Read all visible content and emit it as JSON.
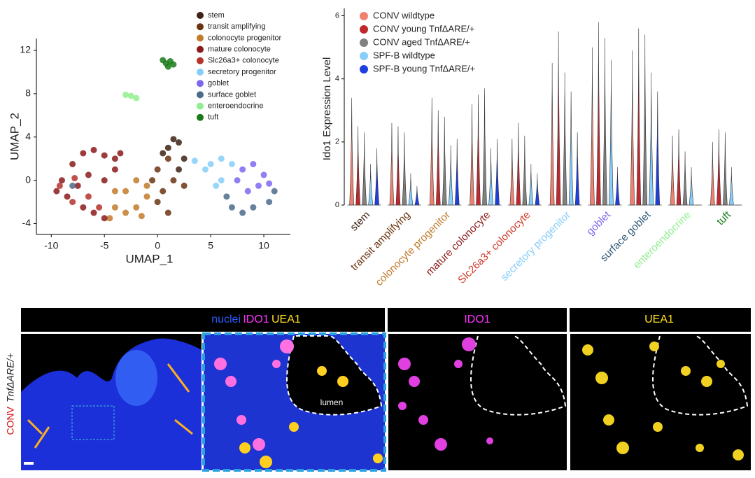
{
  "chart_data": [
    {
      "type": "scatter",
      "xlabel": "UMAP_1",
      "ylabel": "UMAP_2",
      "xlim": [
        -11.4,
        12.5
      ],
      "ylim": [
        -5,
        13.1
      ],
      "xticks": [
        -10,
        -5,
        0,
        5,
        10
      ],
      "yticks": [
        -4,
        0,
        4,
        8,
        12
      ],
      "series": [
        {
          "name": "stem",
          "color": "#3d2314",
          "x": [
            1,
            2,
            2.5,
            2,
            1.5,
            0.5
          ],
          "y": [
            3,
            3.5,
            2,
            1,
            3.8,
            2.5
          ]
        },
        {
          "name": "transit amplifying",
          "color": "#6b3410",
          "x": [
            0,
            1,
            0.5,
            1,
            0,
            1.5,
            2.5,
            -0.5
          ],
          "y": [
            1,
            2,
            -1,
            -3,
            -2,
            0,
            -0.5,
            0
          ]
        },
        {
          "name": "colonocyte progenitor",
          "color": "#c27a2c",
          "x": [
            -4,
            -3,
            -2,
            -1,
            -3,
            -2,
            -1,
            -4,
            -1.5,
            -4.5
          ],
          "y": [
            -2.5,
            -3,
            -2.5,
            -1.5,
            -1,
            0,
            -0.5,
            -1,
            -3.3,
            -3.5
          ]
        },
        {
          "name": "mature colonocyte",
          "color": "#8b1a1a",
          "x": [
            -9,
            -8,
            -7,
            -6,
            -5,
            -4,
            -8.5,
            -7,
            -6,
            -5,
            -6.5,
            -7.5,
            -5,
            -4,
            -9.5,
            -3.5
          ],
          "y": [
            0,
            1.5,
            2.5,
            2.8,
            2.3,
            2,
            -1.5,
            -2.5,
            -3,
            -3.5,
            0.5,
            -0.5,
            0,
            1,
            -1,
            2.5
          ]
        },
        {
          "name": "Slc26a3+ colonocyte",
          "color": "#b5332a",
          "x": [
            -9.2,
            -8,
            -6.5,
            -5.5,
            -7.8
          ],
          "y": [
            -0.5,
            -2,
            -1.5,
            -2.5,
            0.2
          ]
        },
        {
          "name": "secretory progenitor",
          "color": "#87cefa",
          "x": [
            5,
            6,
            4.5,
            6,
            7,
            5.5,
            3.5
          ],
          "y": [
            1.5,
            2,
            1,
            0,
            1.5,
            -0.5,
            1.8
          ]
        },
        {
          "name": "goblet",
          "color": "#7b68ee",
          "x": [
            8,
            9,
            10,
            8.5,
            9.5,
            7.5,
            10.5
          ],
          "y": [
            1,
            1.5,
            0.5,
            -1,
            -0.5,
            0,
            -0.3
          ]
        },
        {
          "name": "surface goblet",
          "color": "#4a6b8a",
          "x": [
            6.5,
            7,
            9,
            10.5,
            11,
            8,
            -8
          ],
          "y": [
            -1.5,
            -2.5,
            -2.5,
            -2,
            -1,
            -3,
            -0.5
          ]
        },
        {
          "name": "enteroendocrine",
          "color": "#90ee90",
          "x": [
            -2.5,
            -2,
            -3
          ],
          "y": [
            7.8,
            7.6,
            7.9
          ]
        },
        {
          "name": "tuft",
          "color": "#1a7a1a",
          "x": [
            0.8,
            1.2,
            1,
            1.5,
            0.5
          ],
          "y": [
            10.8,
            11,
            10.5,
            10.7,
            11.1
          ]
        }
      ]
    },
    {
      "type": "violin",
      "ylabel": "Ido1 Expression Level",
      "categories": [
        "stem",
        "transit amplifying",
        "colonocyte progenitor",
        "mature colonocyte",
        "Slc26a3+ colonocyte",
        "secretory progenitor",
        "goblet",
        "surface goblet",
        "enteroendocrine",
        "tuft"
      ],
      "category_colors": [
        "#3d2314",
        "#6b3410",
        "#c27a2c",
        "#8b1a1a",
        "#d03a2a",
        "#87cefa",
        "#7b68ee",
        "#2f5878",
        "#90ee90",
        "#1a7a1a"
      ],
      "ylim": [
        0,
        6.1
      ],
      "yticks": [
        0,
        2,
        4,
        6
      ],
      "series": [
        {
          "name": "CONV wildtype",
          "color": "#f08070",
          "values": [
            3.4,
            2.6,
            3.4,
            3.2,
            2.1,
            4.5,
            5.0,
            4.9,
            2.2,
            2.0
          ]
        },
        {
          "name": "CONV young TnfΔARE/+",
          "color": "#c0282d",
          "values": [
            2.5,
            2.5,
            3.0,
            3.5,
            2.6,
            5.5,
            5.8,
            5.6,
            2.4,
            2.4
          ]
        },
        {
          "name": "CONV aged TnfΔARE/+",
          "color": "#808080",
          "values": [
            2.3,
            2.3,
            2.8,
            3.7,
            2.2,
            4.2,
            5.3,
            5.4,
            1.7,
            2.3
          ]
        },
        {
          "name": "SPF-B wildtype",
          "color": "#87cefa",
          "values": [
            1.3,
            1.0,
            1.9,
            1.8,
            1.3,
            3.6,
            4.6,
            4.2,
            1.2,
            1.2
          ]
        },
        {
          "name": "SPF-B young TnfΔARE/+",
          "color": "#1e3ee0",
          "values": [
            1.8,
            0.6,
            2.1,
            2.1,
            1.0,
            2.3,
            1.2,
            3.6,
            0,
            0
          ]
        }
      ]
    }
  ],
  "micrograph": {
    "stain_labels": [
      "nuclei",
      "IDO1",
      "UEA1"
    ],
    "panel_titles": [
      "IDO1",
      "UEA1"
    ],
    "row_label": [
      "CONV",
      "TnfΔARE/+"
    ],
    "annotation": "lumen"
  }
}
